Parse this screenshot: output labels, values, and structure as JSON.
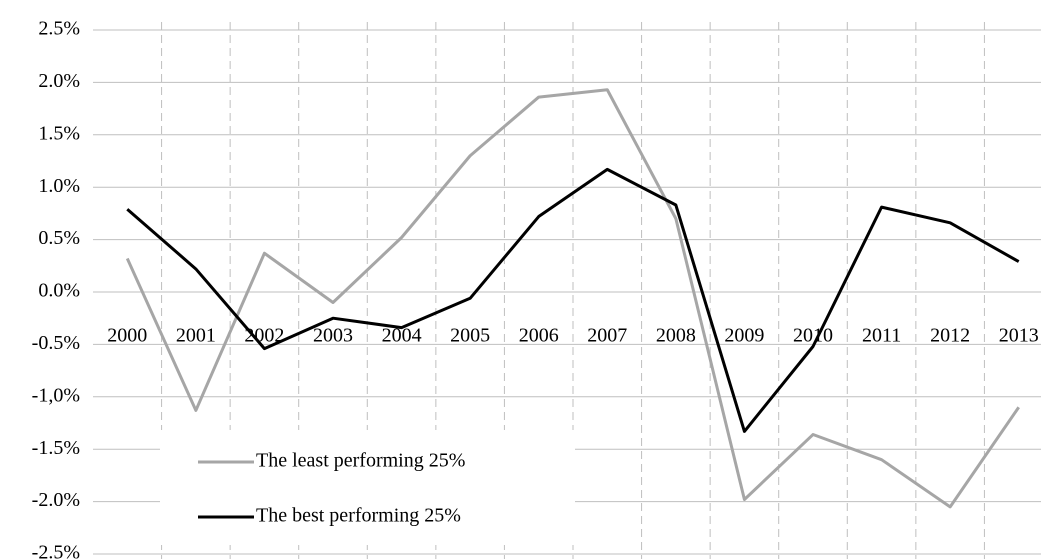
{
  "chart_data": {
    "type": "line",
    "categories": [
      "2000",
      "2001",
      "2002",
      "2003",
      "2004",
      "2005",
      "2006",
      "2007",
      "2008",
      "2009",
      "2010",
      "2011",
      "2012",
      "2013"
    ],
    "series": [
      {
        "name": "The least performing 25%",
        "color": "#a6a6a6",
        "values": [
          0.32,
          -1.13,
          0.37,
          -0.1,
          0.52,
          1.3,
          1.86,
          1.93,
          0.7,
          -1.98,
          -1.36,
          -1.6,
          -2.05,
          -1.1
        ]
      },
      {
        "name": "The best performing 25%",
        "color": "#000000",
        "values": [
          0.79,
          0.22,
          -0.54,
          -0.25,
          -0.34,
          -0.06,
          0.72,
          1.17,
          0.83,
          -1.33,
          -0.52,
          0.81,
          0.66,
          0.29
        ]
      }
    ],
    "ylim": [
      -2.5,
      2.5
    ],
    "yticks": [
      {
        "value": 2.5,
        "label": "2.5%"
      },
      {
        "value": 2,
        "label": "2.0%"
      },
      {
        "value": 1.5,
        "label": "1.5%"
      },
      {
        "value": 1,
        "label": "1.0%"
      },
      {
        "value": 0.5,
        "label": "0.5%"
      },
      {
        "value": 0,
        "label": "0.0%"
      },
      {
        "value": -0.5,
        "label": "-0.5%"
      },
      {
        "value": -1,
        "label": "-1,0%"
      },
      {
        "value": -1.5,
        "label": "-1.5%"
      },
      {
        "value": -2,
        "label": "-2.0%"
      },
      {
        "value": -2.5,
        "label": "-2.5%"
      }
    ],
    "grid": true,
    "legend": "lower left"
  }
}
